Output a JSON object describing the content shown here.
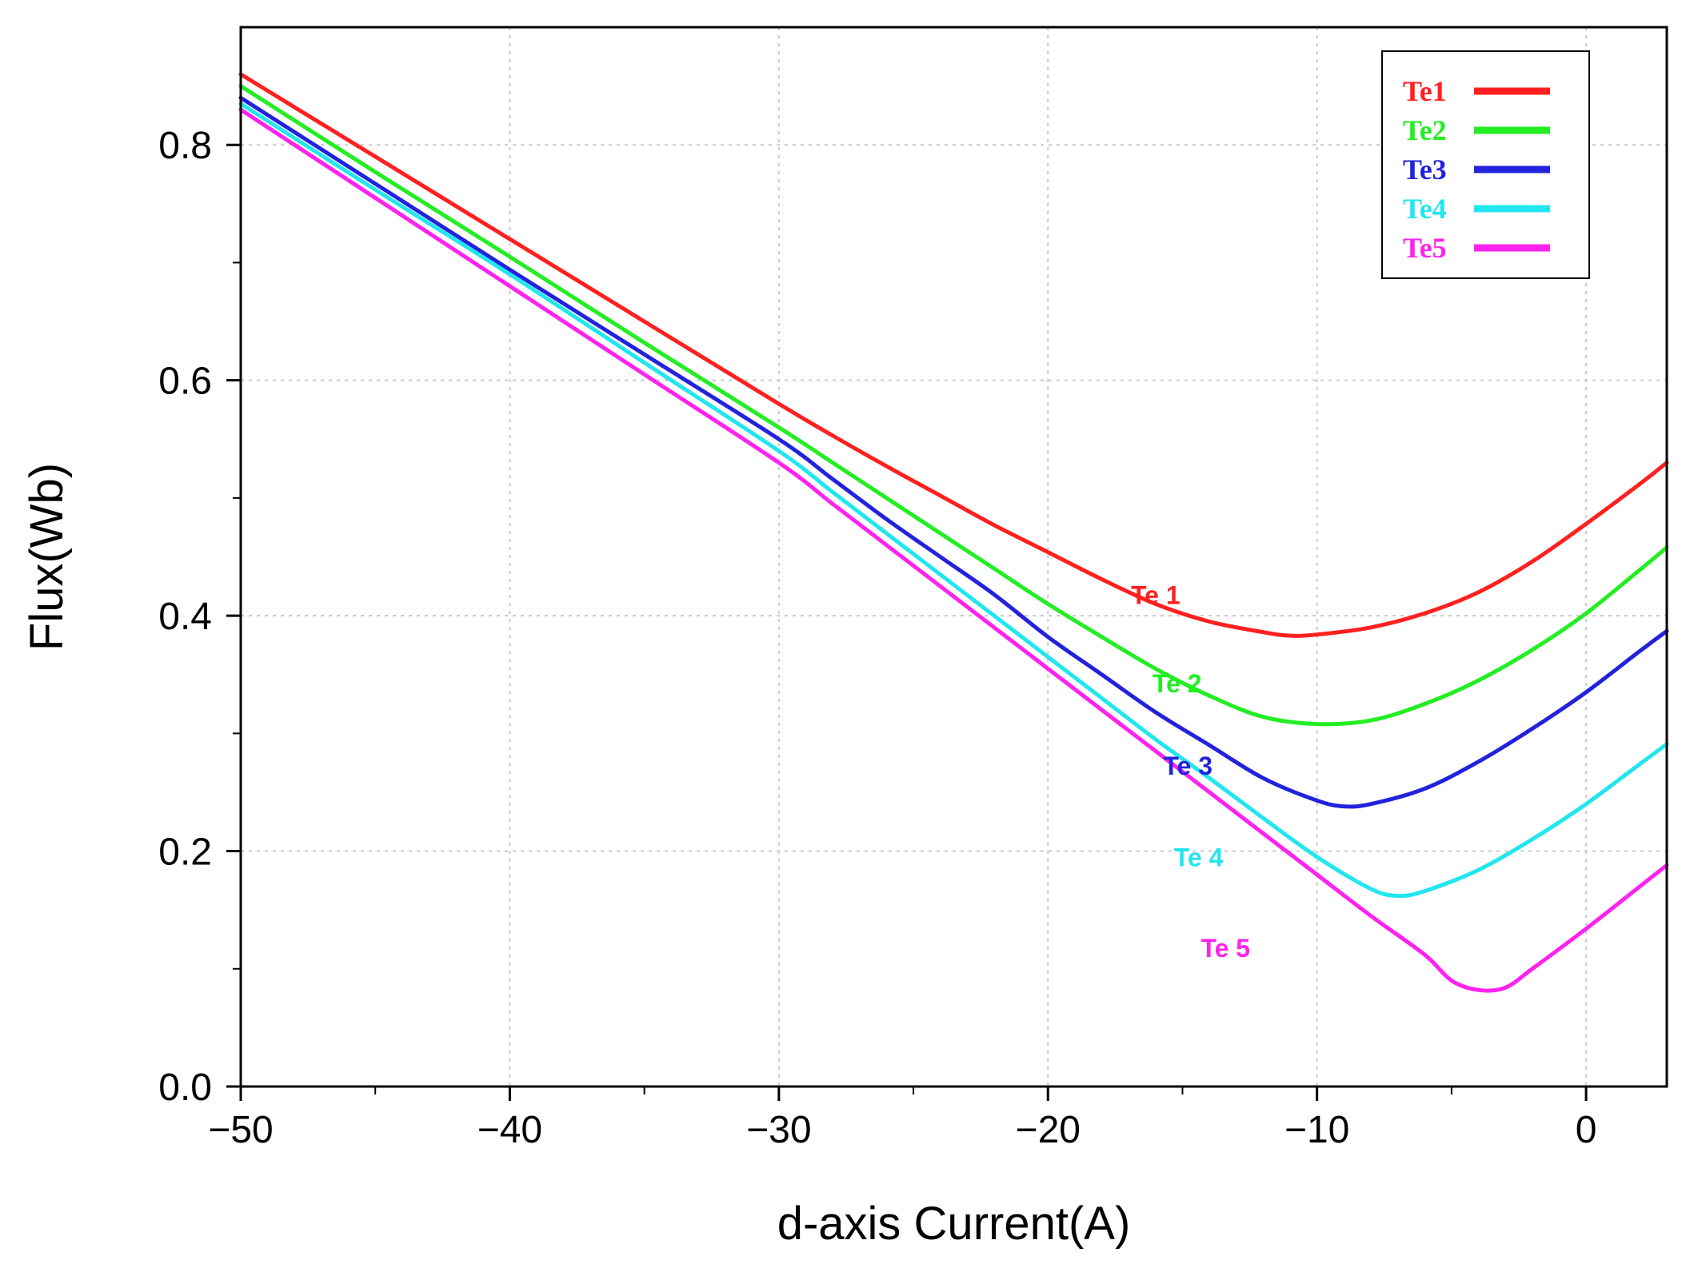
{
  "chart_data": {
    "type": "line",
    "title": "",
    "xlabel": "d-axis Current(A)",
    "ylabel": "Flux(Wb)",
    "xlim": [
      -50,
      3
    ],
    "ylim": [
      0,
      0.9
    ],
    "xticks": [
      -50,
      -40,
      -30,
      -20,
      -10,
      0
    ],
    "xtick_labels": [
      "−50",
      "−40",
      "−30",
      "−20",
      "−10",
      "0"
    ],
    "yticks": [
      0.0,
      0.2,
      0.4,
      0.6,
      0.8
    ],
    "ytick_labels": [
      "0.0",
      "0.2",
      "0.4",
      "0.6",
      "0.8"
    ],
    "grid": true,
    "legend_position": "top-right",
    "series": [
      {
        "name": "Te1",
        "label": "Te 1",
        "color": "#ff2020",
        "label_at": [
          -16,
          0.41
        ],
        "points": [
          [
            -50,
            0.86
          ],
          [
            -45,
            0.79
          ],
          [
            -40,
            0.72
          ],
          [
            -35,
            0.65
          ],
          [
            -30,
            0.58
          ],
          [
            -28,
            0.553
          ],
          [
            -26,
            0.527
          ],
          [
            -24,
            0.502
          ],
          [
            -22,
            0.477
          ],
          [
            -20,
            0.454
          ],
          [
            -18,
            0.431
          ],
          [
            -16,
            0.41
          ],
          [
            -14,
            0.395
          ],
          [
            -12,
            0.386
          ],
          [
            -11,
            0.383
          ],
          [
            -10,
            0.384
          ],
          [
            -8,
            0.39
          ],
          [
            -6,
            0.402
          ],
          [
            -4,
            0.42
          ],
          [
            -2,
            0.446
          ],
          [
            0,
            0.478
          ],
          [
            2,
            0.512
          ],
          [
            3,
            0.53
          ]
        ]
      },
      {
        "name": "Te2",
        "label": "Te 2",
        "color": "#22ee22",
        "label_at": [
          -15.2,
          0.335
        ],
        "points": [
          [
            -50,
            0.85
          ],
          [
            -45,
            0.777
          ],
          [
            -40,
            0.705
          ],
          [
            -35,
            0.632
          ],
          [
            -30,
            0.56
          ],
          [
            -28,
            0.53
          ],
          [
            -26,
            0.5
          ],
          [
            -24,
            0.47
          ],
          [
            -22,
            0.44
          ],
          [
            -20,
            0.41
          ],
          [
            -18,
            0.382
          ],
          [
            -16,
            0.355
          ],
          [
            -14,
            0.332
          ],
          [
            -12,
            0.314
          ],
          [
            -10,
            0.308
          ],
          [
            -8,
            0.311
          ],
          [
            -6,
            0.325
          ],
          [
            -4,
            0.345
          ],
          [
            -2,
            0.371
          ],
          [
            0,
            0.402
          ],
          [
            2,
            0.439
          ],
          [
            3,
            0.458
          ]
        ]
      },
      {
        "name": "Te3",
        "label": "Te 3",
        "color": "#2222dd",
        "label_at": [
          -14.8,
          0.265
        ],
        "points": [
          [
            -50,
            0.84
          ],
          [
            -45,
            0.767
          ],
          [
            -40,
            0.694
          ],
          [
            -35,
            0.622
          ],
          [
            -30,
            0.55
          ],
          [
            -28,
            0.516
          ],
          [
            -26,
            0.482
          ],
          [
            -24,
            0.45
          ],
          [
            -22,
            0.418
          ],
          [
            -20,
            0.382
          ],
          [
            -18,
            0.35
          ],
          [
            -16,
            0.318
          ],
          [
            -14,
            0.29
          ],
          [
            -12,
            0.262
          ],
          [
            -10,
            0.243
          ],
          [
            -9,
            0.238
          ],
          [
            -8,
            0.24
          ],
          [
            -6,
            0.253
          ],
          [
            -4,
            0.276
          ],
          [
            -2,
            0.304
          ],
          [
            0,
            0.335
          ],
          [
            2,
            0.37
          ],
          [
            3,
            0.387
          ]
        ]
      },
      {
        "name": "Te4",
        "label": "Te 4",
        "color": "#22e6ee",
        "label_at": [
          -14.4,
          0.187
        ],
        "points": [
          [
            -50,
            0.835
          ],
          [
            -45,
            0.762
          ],
          [
            -40,
            0.69
          ],
          [
            -35,
            0.615
          ],
          [
            -30,
            0.54
          ],
          [
            -28,
            0.505
          ],
          [
            -26,
            0.47
          ],
          [
            -24,
            0.435
          ],
          [
            -22,
            0.4
          ],
          [
            -20,
            0.365
          ],
          [
            -18,
            0.33
          ],
          [
            -16,
            0.295
          ],
          [
            -14,
            0.262
          ],
          [
            -12,
            0.228
          ],
          [
            -10,
            0.195
          ],
          [
            -8,
            0.168
          ],
          [
            -7,
            0.162
          ],
          [
            -6,
            0.166
          ],
          [
            -4,
            0.184
          ],
          [
            -2,
            0.21
          ],
          [
            0,
            0.24
          ],
          [
            2,
            0.274
          ],
          [
            3,
            0.291
          ]
        ]
      },
      {
        "name": "Te5",
        "label": "Te 5",
        "color": "#ff22ee",
        "label_at": [
          -13.4,
          0.11
        ],
        "points": [
          [
            -50,
            0.83
          ],
          [
            -45,
            0.755
          ],
          [
            -40,
            0.68
          ],
          [
            -35,
            0.605
          ],
          [
            -30,
            0.53
          ],
          [
            -28,
            0.495
          ],
          [
            -26,
            0.46
          ],
          [
            -24,
            0.425
          ],
          [
            -22,
            0.39
          ],
          [
            -20,
            0.355
          ],
          [
            -18,
            0.32
          ],
          [
            -16,
            0.285
          ],
          [
            -14,
            0.25
          ],
          [
            -12,
            0.215
          ],
          [
            -10,
            0.18
          ],
          [
            -8,
            0.145
          ],
          [
            -6,
            0.112
          ],
          [
            -5,
            0.09
          ],
          [
            -4,
            0.082
          ],
          [
            -3,
            0.084
          ],
          [
            -2,
            0.1
          ],
          [
            0,
            0.134
          ],
          [
            2,
            0.17
          ],
          [
            3,
            0.188
          ]
        ]
      }
    ]
  }
}
